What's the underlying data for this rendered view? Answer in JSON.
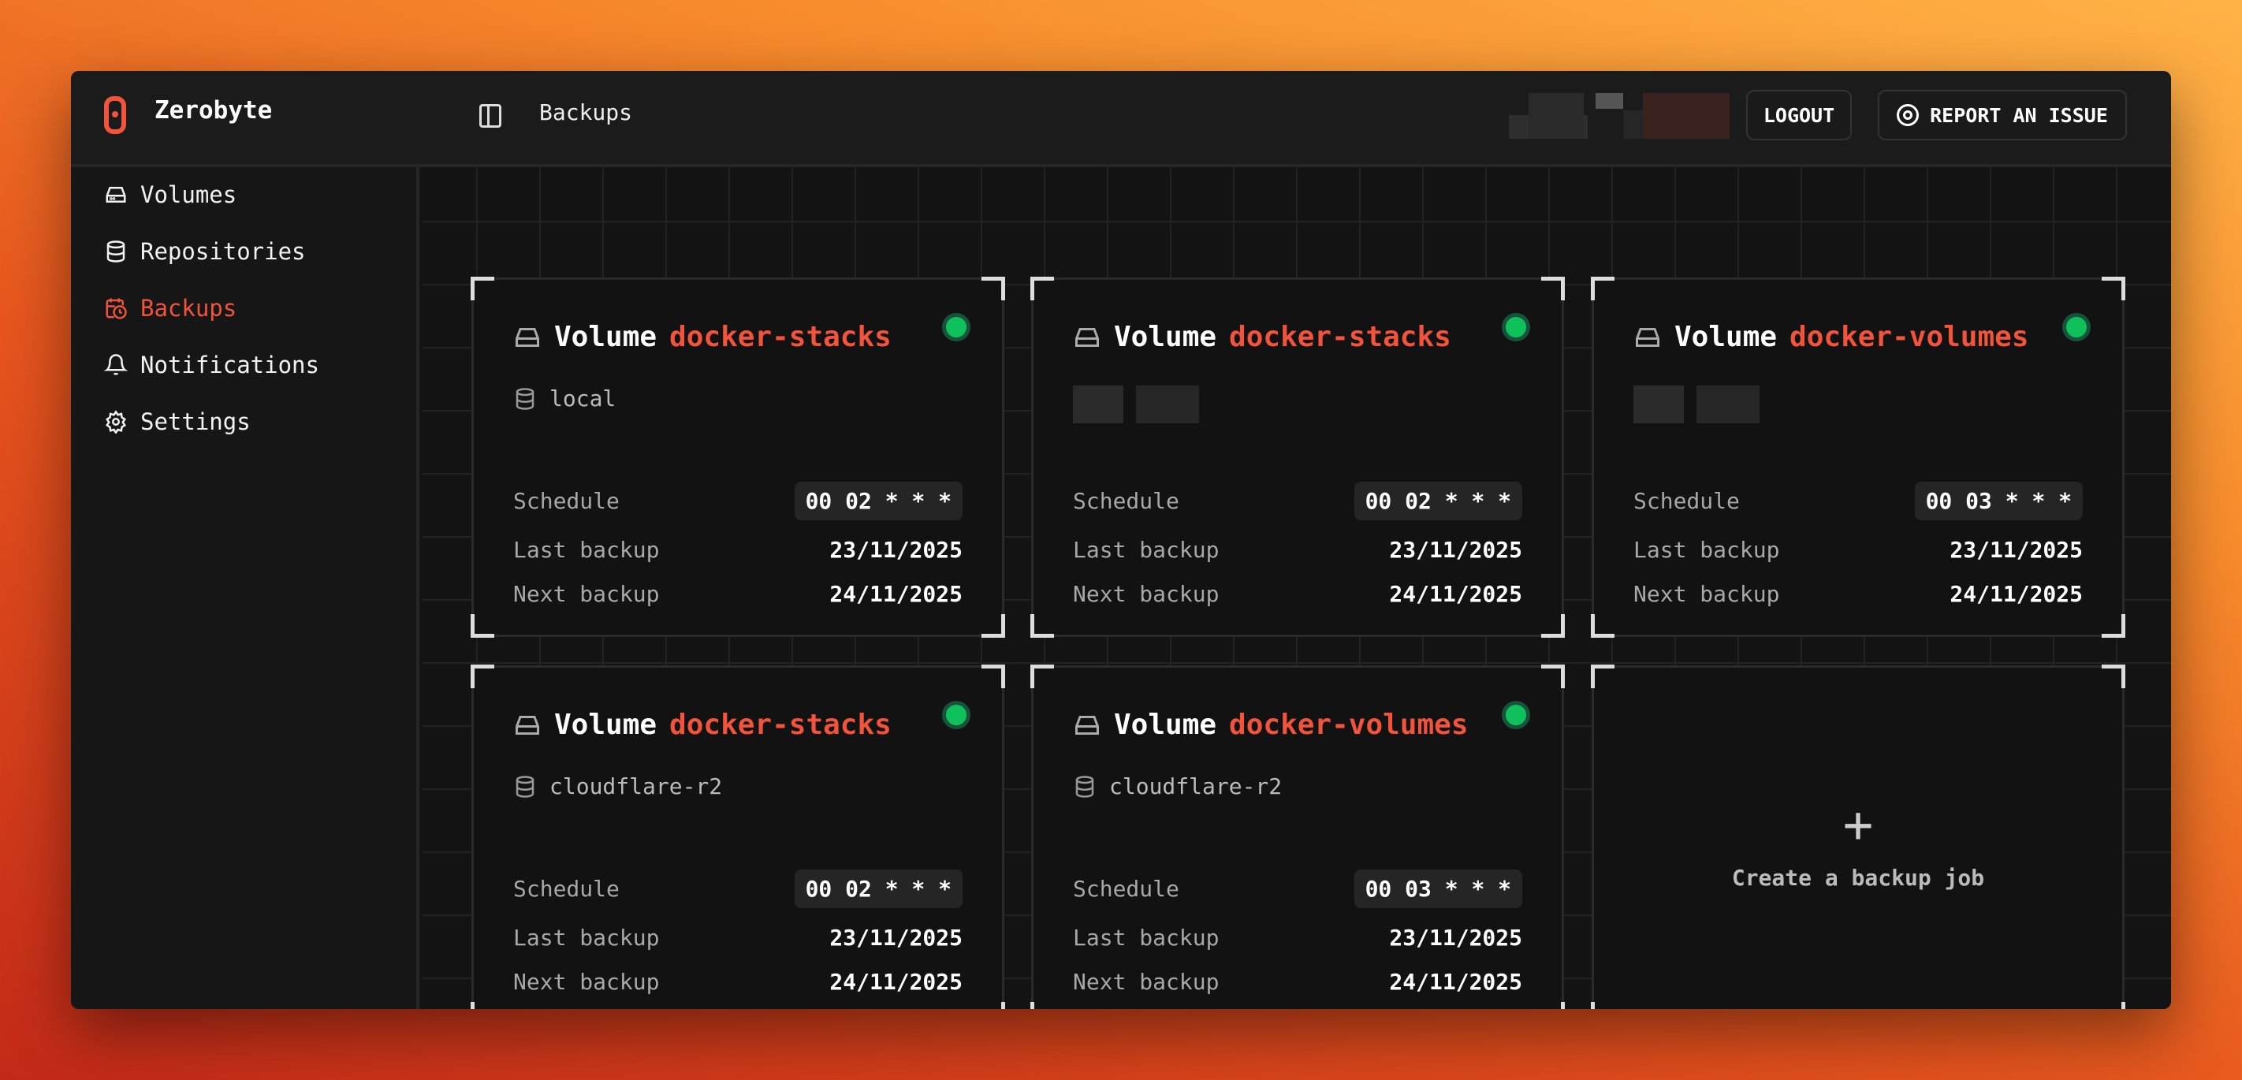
{
  "app": {
    "name": "Zerobyte",
    "breadcrumb": "Backups"
  },
  "header": {
    "logout": "LOGOUT",
    "report": "REPORT AN ISSUE"
  },
  "sidebar": {
    "items": [
      {
        "label": "Volumes",
        "icon": "hard-drive-icon",
        "active": false
      },
      {
        "label": "Repositories",
        "icon": "database-icon",
        "active": false
      },
      {
        "label": "Backups",
        "icon": "calendar-clock-icon",
        "active": true
      },
      {
        "label": "Notifications",
        "icon": "bell-icon",
        "active": false
      },
      {
        "label": "Settings",
        "icon": "gear-icon",
        "active": false
      }
    ]
  },
  "labels": {
    "volume": "Volume",
    "schedule": "Schedule",
    "last": "Last backup",
    "next": "Next backup"
  },
  "cards": [
    {
      "volume": "docker-stacks",
      "repo": "local",
      "schedule": "00 02 * * *",
      "last": "23/11/2025",
      "next": "24/11/2025",
      "status": "active"
    },
    {
      "volume": "docker-stacks",
      "repo": "",
      "schedule": "00 02 * * *",
      "last": "23/11/2025",
      "next": "24/11/2025",
      "status": "active"
    },
    {
      "volume": "docker-volumes",
      "repo": "",
      "schedule": "00 03 * * *",
      "last": "23/11/2025",
      "next": "24/11/2025",
      "status": "active"
    },
    {
      "volume": "docker-stacks",
      "repo": "cloudflare-r2",
      "schedule": "00 02 * * *",
      "last": "23/11/2025",
      "next": "24/11/2025",
      "status": "active"
    },
    {
      "volume": "docker-volumes",
      "repo": "cloudflare-r2",
      "schedule": "00 03 * * *",
      "last": "23/11/2025",
      "next": "24/11/2025",
      "status": "active"
    }
  ],
  "create": {
    "label": "Create a backup job"
  },
  "colors": {
    "accent": "#f1533b",
    "status_ok": "#0fc15a"
  }
}
